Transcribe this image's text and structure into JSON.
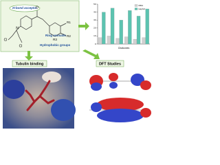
{
  "structure": {
    "hbond": "H-bond acceptor",
    "ring": "Ring aromatic",
    "hydrophobic": "Hydrophobic groups",
    "atoms": [
      "O",
      "N",
      "Cl",
      "Cl",
      "R1",
      "R2",
      "R3"
    ]
  },
  "panels": {
    "tubulin": "Tubulin binding",
    "dft": "DFT Studies"
  },
  "chart_data": {
    "type": "bar",
    "x_label": "Chalcones",
    "categories": [
      null,
      null,
      null,
      null,
      null,
      null
    ],
    "series": [
      {
        "name": "MDA",
        "color": "#d0d0d0",
        "values": [
          8,
          10,
          7,
          9,
          6,
          8
        ]
      },
      {
        "name": "HepG2",
        "color": "#5cc3b0",
        "values": [
          40,
          45,
          30,
          42,
          35,
          44
        ]
      }
    ],
    "ylim": [
      0,
      50
    ],
    "yticks": [
      0,
      10,
      20,
      30,
      40,
      50
    ],
    "grid": false
  }
}
